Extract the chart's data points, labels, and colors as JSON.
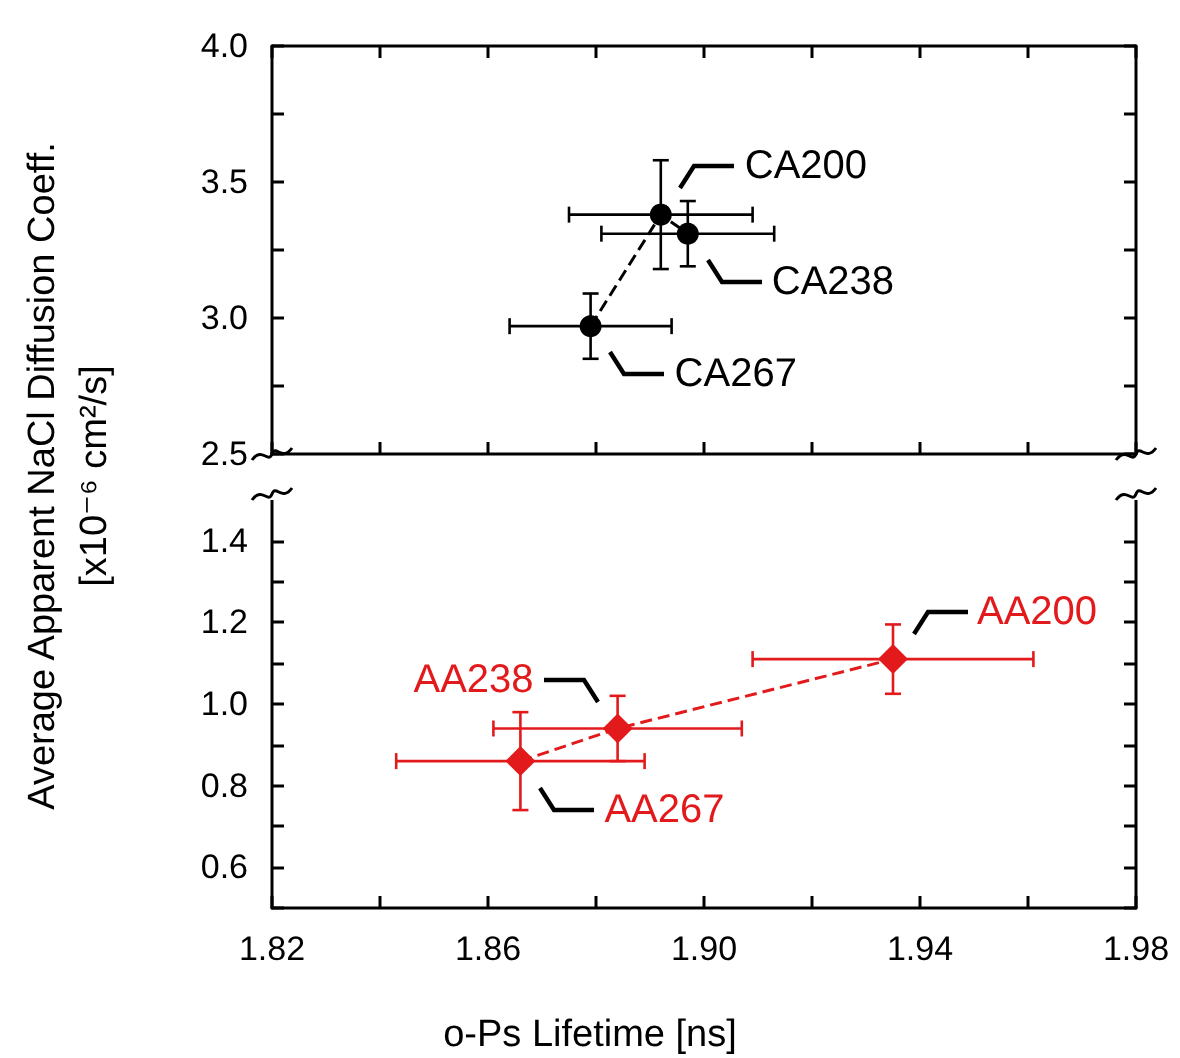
{
  "chart_data": [
    {
      "type": "line",
      "ylabel": "Average Apparent NaCl Diffusion Coeff.\n[x10⁻⁶ cm²/s]",
      "marker": "circle",
      "line_style": "dashed",
      "tick_labels": "y",
      "xlim": [
        1.82,
        1.98
      ],
      "xticks": [
        {
          "value": 1.82,
          "label": null
        },
        {
          "value": 1.84,
          "label": null
        },
        {
          "value": 1.86,
          "label": null
        },
        {
          "value": 1.88,
          "label": null
        },
        {
          "value": 1.9,
          "label": null
        },
        {
          "value": 1.92,
          "label": null
        },
        {
          "value": 1.94,
          "label": null
        },
        {
          "value": 1.96,
          "label": null
        },
        {
          "value": 1.98,
          "label": null
        }
      ],
      "ylim": [
        2.5,
        4.0
      ],
      "yticks": [
        2.5,
        {
          "value": 2.75,
          "label": null
        },
        {
          "value": 3,
          "label": "3.0"
        },
        {
          "value": 3.25,
          "label": null
        },
        3.5,
        {
          "value": 3.75,
          "label": null
        },
        {
          "value": 4,
          "label": "4.0"
        }
      ],
      "series": [
        {
          "color": "#000000",
          "x": [
            1.879,
            1.892,
            1.897
          ],
          "values": [
            2.97,
            3.38,
            3.31
          ],
          "errors": [
            0.12,
            0.2,
            0.12
          ],
          "xerrors": [
            0.015,
            0.017,
            0.016
          ]
        }
      ],
      "annotations": [
        {
          "text": "CA200",
          "x": 1.892,
          "y": 3.38
        },
        {
          "text": "CA238",
          "x": 1.897,
          "y": 3.31
        },
        {
          "text": "CA267",
          "x": 1.879,
          "y": 2.97
        }
      ]
    },
    {
      "type": "line",
      "xlabel": "o-Ps Lifetime [ns]",
      "marker": "diamond",
      "line_style": "dashed",
      "xlim": [
        1.82,
        1.98
      ],
      "xticks": [
        1.82,
        {
          "value": 1.84,
          "label": null
        },
        1.86,
        {
          "value": 1.88,
          "label": null
        },
        {
          "value": 1.9,
          "label": "1.90"
        },
        {
          "value": 1.92,
          "label": null
        },
        1.94,
        {
          "value": 1.96,
          "label": null
        },
        1.98
      ],
      "ylim": [
        0.5,
        1.5
      ],
      "yticks": [
        {
          "value": 0.5,
          "label": null
        },
        0.6,
        {
          "value": 0.7,
          "label": null
        },
        0.8,
        {
          "value": 0.9,
          "label": null
        },
        {
          "value": 1,
          "label": "1.0"
        },
        {
          "value": 1.1,
          "label": null
        },
        1.2,
        {
          "value": 1.3,
          "label": null
        },
        1.4
      ],
      "series": [
        {
          "color": "#e31a1c",
          "x": [
            1.866,
            1.884,
            1.935
          ],
          "values": [
            0.86,
            0.94,
            1.11
          ],
          "errors": [
            0.12,
            0.08,
            0.085
          ],
          "xerrors": [
            0.023,
            0.023,
            0.026
          ]
        }
      ],
      "annotations": [
        {
          "text": "AA200",
          "x": 1.935,
          "y": 1.11
        },
        {
          "text": "AA238",
          "x": 1.884,
          "y": 0.94
        },
        {
          "text": "AA267",
          "x": 1.866,
          "y": 0.86
        }
      ]
    }
  ]
}
